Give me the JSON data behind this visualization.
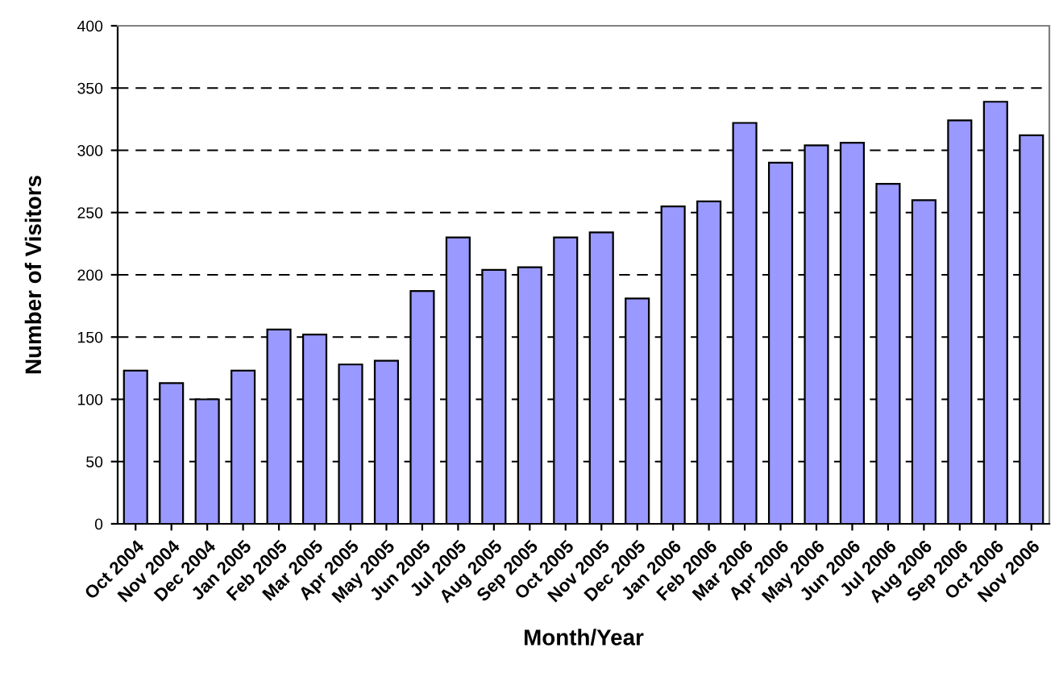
{
  "chart_data": {
    "type": "bar",
    "xlabel": "Month/Year",
    "ylabel": "Number of Visitors",
    "categories": [
      "Oct 2004",
      "Nov 2004",
      "Dec 2004",
      "Jan 2005",
      "Feb 2005",
      "Mar 2005",
      "Apr 2005",
      "May 2005",
      "Jun 2005",
      "Jul 2005",
      "Aug 2005",
      "Sep 2005",
      "Oct 2005",
      "Nov 2005",
      "Dec 2005",
      "Jan 2006",
      "Feb 2006",
      "Mar 2006",
      "Apr 2006",
      "May 2006",
      "Jun 2006",
      "Jul 2006",
      "Aug 2006",
      "Sep 2006",
      "Oct 2006",
      "Nov 2006"
    ],
    "values": [
      123,
      113,
      100,
      123,
      156,
      152,
      128,
      131,
      187,
      230,
      204,
      206,
      230,
      234,
      181,
      255,
      259,
      322,
      290,
      304,
      306,
      273,
      260,
      324,
      339,
      312
    ],
    "color": "#9999ff",
    "ylim": [
      0,
      400
    ],
    "yticks": [
      0,
      50,
      100,
      150,
      200,
      250,
      300,
      350,
      400
    ],
    "grid": "y"
  }
}
